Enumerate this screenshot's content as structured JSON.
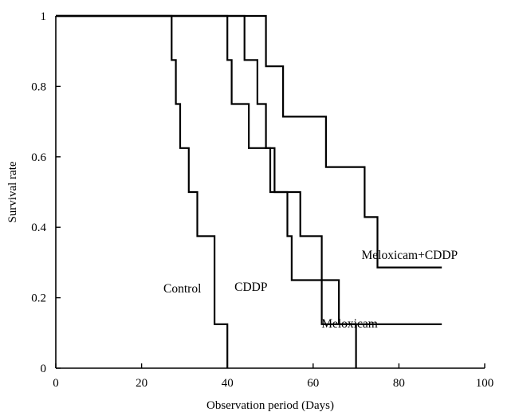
{
  "chart_data": {
    "type": "line",
    "subtype": "step (Kaplan-Meier survival curves)",
    "title": "",
    "xlabel": "Observation period (Days)",
    "ylabel": "Survival rate",
    "xlim": [
      0,
      100
    ],
    "ylim": [
      0,
      1
    ],
    "xticks": [
      "0",
      "20",
      "40",
      "60",
      "80",
      "100"
    ],
    "yticks": [
      "0",
      "0.2",
      "0.4",
      "0.6",
      "0.8",
      "1"
    ],
    "grid": false,
    "legend": "none (series labeled directly on plot)",
    "colors": {
      "line": "#000000",
      "background": "#ffffff"
    },
    "series": [
      {
        "name": "Control",
        "x": [
          0,
          27,
          27,
          28,
          28,
          29,
          29,
          31,
          31,
          33,
          33,
          37,
          37,
          40,
          40
        ],
        "y": [
          1,
          1,
          0.875,
          0.875,
          0.75,
          0.75,
          0.625,
          0.625,
          0.5,
          0.5,
          0.375,
          0.375,
          0.125,
          0.125,
          0
        ]
      },
      {
        "name": "CDDP",
        "x": [
          0,
          40,
          40,
          41,
          41,
          45,
          45,
          48,
          48,
          51,
          51,
          54,
          54,
          55,
          55,
          66,
          66,
          70,
          70
        ],
        "y": [
          1,
          1,
          0.875,
          0.875,
          0.75,
          0.75,
          0.625,
          0.625,
          0.625,
          0.625,
          0.5,
          0.5,
          0.375,
          0.375,
          0.25,
          0.25,
          0.125,
          0.125,
          0
        ]
      },
      {
        "name": "Meloxicam",
        "x": [
          0,
          44,
          44,
          47,
          47,
          49,
          49,
          50,
          50,
          57,
          57,
          62,
          62,
          90
        ],
        "y": [
          1,
          1,
          0.875,
          0.875,
          0.75,
          0.75,
          0.625,
          0.625,
          0.5,
          0.5,
          0.375,
          0.375,
          0.125,
          0.125
        ]
      },
      {
        "name": "Meloxicam+CDDP",
        "x": [
          0,
          49,
          49,
          53,
          53,
          63,
          63,
          72,
          72,
          75,
          75,
          90
        ],
        "y": [
          1,
          1,
          0.857,
          0.857,
          0.714,
          0.714,
          0.571,
          0.571,
          0.429,
          0.429,
          0.286,
          0.286
        ]
      }
    ],
    "annotations": [
      {
        "text": "Control",
        "x": 29.5,
        "y": 0.215
      },
      {
        "text": "CDDP",
        "x": 45.5,
        "y": 0.22
      },
      {
        "text": "Meloxicam",
        "x": 68.5,
        "y": 0.115
      },
      {
        "text": "Meloxicam+CDDP",
        "x": 82.5,
        "y": 0.31
      }
    ]
  }
}
